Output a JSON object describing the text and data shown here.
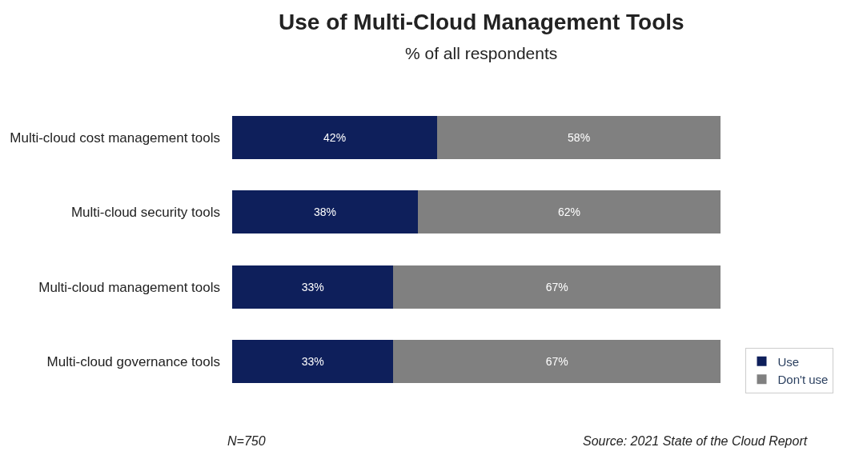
{
  "chart_data": {
    "type": "bar",
    "orientation": "horizontal",
    "stacked": true,
    "title": "Use of Multi-Cloud Management Tools",
    "subtitle": "% of all respondents",
    "categories": [
      "Multi-cloud cost management tools",
      "Multi-cloud security tools",
      "Multi-cloud management tools",
      "Multi-cloud governance tools"
    ],
    "series": [
      {
        "name": "Use",
        "color": "#0e1f5b",
        "values": [
          42,
          38,
          33,
          33
        ],
        "value_labels": [
          "42%",
          "38%",
          "33%",
          "33%"
        ]
      },
      {
        "name": "Don't use",
        "color": "#808080",
        "values": [
          58,
          62,
          67,
          67
        ],
        "value_labels": [
          "58%",
          "62%",
          "67%",
          "67%"
        ]
      }
    ],
    "xlim": [
      0,
      100
    ],
    "tick_labels": "y",
    "legend": "bottom right",
    "annotations": [
      "N=750",
      "Source: 2021 State of the Cloud Report"
    ]
  }
}
